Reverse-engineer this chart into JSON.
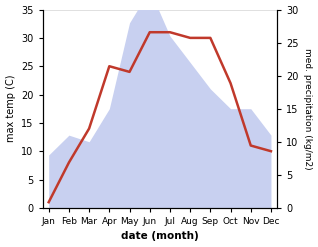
{
  "months": [
    "Jan",
    "Feb",
    "Mar",
    "Apr",
    "May",
    "Jun",
    "Jul",
    "Aug",
    "Sep",
    "Oct",
    "Nov",
    "Dec"
  ],
  "temperature": [
    1,
    8,
    14,
    25,
    24,
    31,
    31,
    30,
    30,
    22,
    11,
    10
  ],
  "precipitation": [
    8,
    11,
    10,
    15,
    28,
    33,
    26,
    22,
    18,
    15,
    15,
    11
  ],
  "temp_color": "#c0392b",
  "precip_color_fill": "#c8d0f0",
  "temp_ylim": [
    0,
    35
  ],
  "precip_ylim": [
    0,
    30
  ],
  "precip_scale_factor": 1.1667,
  "xlabel": "date (month)",
  "ylabel_left": "max temp (C)",
  "ylabel_right": "med. precipitation (kg/m2)",
  "temp_yticks": [
    0,
    5,
    10,
    15,
    20,
    25,
    30,
    35
  ],
  "precip_yticks": [
    0,
    5,
    10,
    15,
    20,
    25,
    30
  ],
  "bg_color": "#ffffff"
}
